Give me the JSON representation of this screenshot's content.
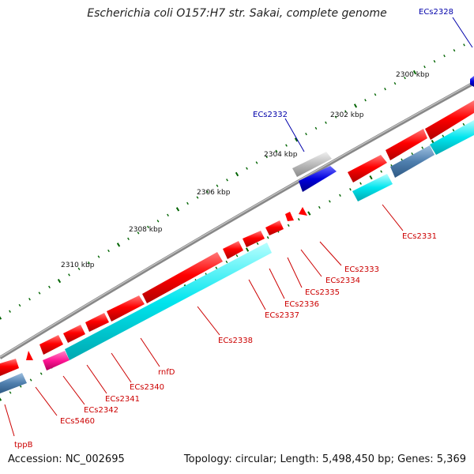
{
  "title": "Escherichia coli O157:H7 str. Sakai, complete genome",
  "footer": {
    "accession": "Accession: NC_002695",
    "summary": "Topology: circular; Length: 5,498,450 bp; Genes: 5,369"
  },
  "colors": {
    "backbone": "#808080",
    "forward_cds": "#ff0000",
    "reverse_cds": "#00e5ee",
    "gene_blue": "#0000dd",
    "gene_steel": "#4f7fae",
    "gene_gray": "#bbbbbb",
    "gene_pink": "#ff1493",
    "label_red": "#cc0000",
    "label_blue": "#0000aa",
    "tick": "#006400"
  },
  "scale_labels": [
    "2300 kbp",
    "2302 kbp",
    "2304 kbp",
    "2306 kbp",
    "2308 kbp",
    "2310 kbp"
  ],
  "gene_labels": [
    "ECs2328",
    "ECs2332",
    "ECs2331",
    "ECs2333",
    "ECs2334",
    "ECs2335",
    "ECs2336",
    "ECs2337",
    "ECs2338",
    "rnfD",
    "ECs2340",
    "ECs2341",
    "ECs2342",
    "ECs5460",
    "tppB"
  ]
}
